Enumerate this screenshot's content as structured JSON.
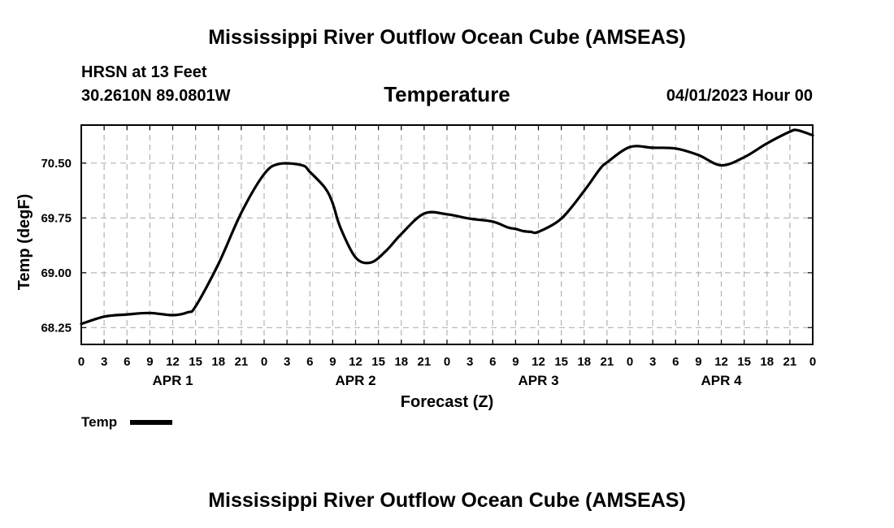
{
  "page": {
    "title_top": "Mississippi River Outflow Ocean Cube (AMSEAS)",
    "title_bottom": "Mississippi River Outflow Ocean Cube (AMSEAS)",
    "station": "HRSN at 13 Feet",
    "coords": "30.2610N  89.0801W",
    "parameter": "Temperature",
    "datetime": "04/01/2023 Hour 00"
  },
  "chart_data": {
    "type": "line",
    "title": "Temperature",
    "xlabel": "Forecast (Z)",
    "ylabel": "Temp (degF)",
    "xlim": [
      0,
      96
    ],
    "ylim": [
      68.02,
      71.02
    ],
    "grid": true,
    "y_ticks": [
      68.25,
      69.0,
      69.75,
      70.5
    ],
    "y_tick_labels": [
      "68.25",
      "69.00",
      "69.75",
      "70.50"
    ],
    "x_ticks": [
      0,
      3,
      6,
      9,
      12,
      15,
      18,
      21,
      24,
      27,
      30,
      33,
      36,
      39,
      42,
      45,
      48,
      51,
      54,
      57,
      60,
      63,
      66,
      69,
      72,
      75,
      78,
      81,
      84,
      87,
      90,
      93,
      96
    ],
    "x_tick_labels": [
      "0",
      "3",
      "6",
      "9",
      "12",
      "15",
      "18",
      "21",
      "0",
      "3",
      "6",
      "9",
      "12",
      "15",
      "18",
      "21",
      "0",
      "3",
      "6",
      "9",
      "12",
      "15",
      "18",
      "21",
      "0",
      "3",
      "6",
      "9",
      "12",
      "15",
      "18",
      "21",
      "0"
    ],
    "day_labels": [
      {
        "hour": 12,
        "label": "APR 1"
      },
      {
        "hour": 36,
        "label": "APR 2"
      },
      {
        "hour": 60,
        "label": "APR 3"
      },
      {
        "hour": 84,
        "label": "APR 4"
      }
    ],
    "legend": "bottom-left",
    "series": [
      {
        "name": "Temp",
        "color": "#000000",
        "x": [
          0,
          3,
          6,
          9,
          12,
          14,
          15,
          18,
          21,
          24,
          26,
          29,
          30,
          32,
          33,
          34,
          36,
          38,
          40,
          42,
          45,
          48,
          51,
          54,
          56,
          57,
          58,
          59,
          60,
          63,
          66,
          68,
          69,
          72,
          75,
          78,
          81,
          84,
          87,
          90,
          93,
          94,
          96
        ],
        "y": [
          68.3,
          68.4,
          68.43,
          68.45,
          68.42,
          68.46,
          68.54,
          69.12,
          69.82,
          70.35,
          70.49,
          70.47,
          70.38,
          70.16,
          69.95,
          69.62,
          69.21,
          69.14,
          69.3,
          69.53,
          69.81,
          69.8,
          69.74,
          69.7,
          69.62,
          69.6,
          69.57,
          69.56,
          69.56,
          69.74,
          70.12,
          70.41,
          70.51,
          70.72,
          70.71,
          70.7,
          70.61,
          70.47,
          70.58,
          70.77,
          70.93,
          70.95,
          70.88
        ]
      }
    ]
  }
}
